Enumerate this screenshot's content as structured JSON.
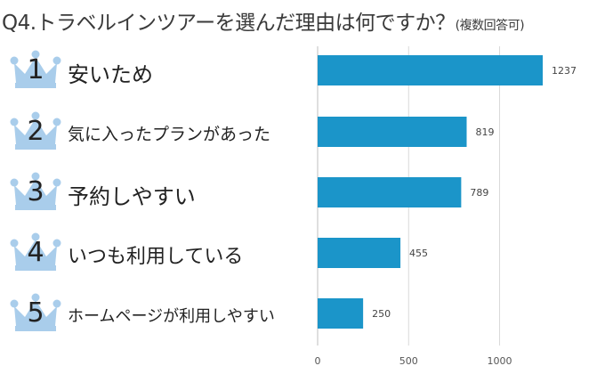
{
  "title": "Q4.トラベルインツアーを選んだ理由は何ですか？",
  "title_note": "(複数回答可)",
  "colors": {
    "bar": "#1B95C9",
    "crown": "#A9CDEB",
    "grid": "#d9d9d9"
  },
  "rankings": [
    {
      "rank": "1",
      "label": "安いため"
    },
    {
      "rank": "2",
      "label": "気に入ったプランがあった"
    },
    {
      "rank": "3",
      "label": "予約しやすい"
    },
    {
      "rank": "4",
      "label": "いつも利用している"
    },
    {
      "rank": "5",
      "label": "ホームページが利用しやすい"
    }
  ],
  "chart_data": {
    "type": "bar",
    "orientation": "horizontal",
    "categories": [
      "安いため",
      "気に入ったプランがあった",
      "予約しやすい",
      "いつも利用している",
      "ホームページが利用しやすい"
    ],
    "values": [
      1237,
      819,
      789,
      455,
      250
    ],
    "data_labels": [
      "1237",
      "819",
      "789",
      "455",
      "250"
    ],
    "x_ticks": [
      0,
      500,
      1000
    ],
    "x_tick_labels": [
      "0",
      "500",
      "1000"
    ],
    "xlim": [
      0,
      1300
    ],
    "grid": true
  }
}
